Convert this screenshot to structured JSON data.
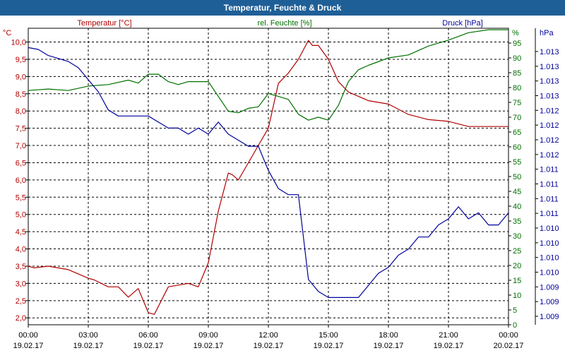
{
  "window": {
    "title": "Temperatur, Feuchte & Druck"
  },
  "chart_data": {
    "type": "line",
    "title": "Temperatur, Feuchte & Druck",
    "grid": true,
    "colors": {
      "temperature": "#b00000",
      "humidity": "#007000",
      "pressure": "#00009a",
      "titlebar": "#1f5f97"
    },
    "x_ticks": [
      {
        "time": "00:00",
        "date": "19.02.17"
      },
      {
        "time": "03:00",
        "date": "19.02.17"
      },
      {
        "time": "06:00",
        "date": "19.02.17"
      },
      {
        "time": "09:00",
        "date": "19.02.17"
      },
      {
        "time": "12:00",
        "date": "19.02.17"
      },
      {
        "time": "15:00",
        "date": "19.02.17"
      },
      {
        "time": "18:00",
        "date": "19.02.17"
      },
      {
        "time": "21:00",
        "date": "19.02.17"
      },
      {
        "time": "00:00",
        "date": "20.02.17"
      }
    ],
    "axes": {
      "temperature": {
        "label": "Temperatur [°C]",
        "unit": "°C",
        "range": [
          1.8,
          10.4
        ],
        "ticks": [
          "2,0",
          "2,5",
          "3,0",
          "3,5",
          "4,0",
          "4,5",
          "5,0",
          "5,5",
          "6,0",
          "6,5",
          "7,0",
          "7,5",
          "8,0",
          "8,5",
          "9,0",
          "9,5",
          "10,0"
        ]
      },
      "humidity": {
        "label": "rel. Feuchte [%]",
        "unit": "%",
        "range": [
          0,
          100
        ],
        "ticks": [
          "0",
          "5",
          "10",
          "15",
          "20",
          "25",
          "30",
          "35",
          "40",
          "45",
          "50",
          "55",
          "60",
          "65",
          "70",
          "75",
          "80",
          "85",
          "90",
          "95"
        ]
      },
      "pressure": {
        "label": "Druck [hPa]",
        "unit": "hPa",
        "ticks": [
          "1.009",
          "1.009",
          "1.009",
          "1.010",
          "1.010",
          "1.010",
          "1.010",
          "1.011",
          "1.011",
          "1.011",
          "1.011",
          "1.012",
          "1.012",
          "1.012",
          "1.012",
          "1.013",
          "1.013",
          "1.013",
          "1.013"
        ]
      }
    },
    "series": [
      {
        "key": "temperature",
        "x": [
          0,
          0.3,
          1,
          2,
          3,
          3.3,
          4,
          4.5,
          5,
          5.5,
          6,
          6.3,
          7,
          7.5,
          8,
          8.5,
          9,
          9.5,
          10,
          10.2,
          10.5,
          11,
          11.5,
          12,
          12.5,
          13,
          13.5,
          14,
          14.2,
          14.5,
          15,
          15.5,
          16,
          17,
          18,
          19,
          20,
          21,
          22,
          23,
          24
        ],
        "y": [
          3.5,
          3.45,
          3.5,
          3.4,
          3.15,
          3.1,
          2.9,
          2.9,
          2.6,
          2.85,
          2.15,
          2.1,
          2.9,
          2.95,
          3.0,
          2.9,
          3.6,
          5.1,
          6.2,
          6.15,
          6.0,
          6.5,
          7.0,
          7.5,
          8.8,
          9.1,
          9.5,
          10.05,
          9.9,
          9.9,
          9.5,
          8.85,
          8.55,
          8.3,
          8.2,
          7.9,
          7.75,
          7.7,
          7.55,
          7.55,
          7.55
        ]
      },
      {
        "key": "humidity",
        "x": [
          0,
          1,
          2,
          3,
          4,
          5,
          5.5,
          6,
          6.5,
          7,
          7.5,
          8,
          9,
          10,
          10.5,
          11,
          11.5,
          12,
          12.5,
          13,
          13.5,
          14,
          14.5,
          15,
          15.5,
          16,
          16.5,
          17,
          18,
          19,
          20,
          21,
          22,
          23,
          24
        ],
        "y": [
          79,
          79.5,
          79,
          80.5,
          81,
          82.5,
          81.5,
          84.5,
          84.5,
          82,
          81,
          82,
          82,
          72,
          71.5,
          73,
          73.5,
          78,
          77,
          76,
          71,
          69,
          70,
          69,
          74,
          82,
          86,
          87.5,
          90,
          91,
          94,
          96,
          98.5,
          99.5,
          99.5
        ]
      },
      {
        "key": "pressure",
        "x": [
          0,
          0.5,
          1,
          2,
          2.5,
          3,
          3.5,
          4,
          4.5,
          5,
          5.5,
          6,
          6.5,
          7,
          7.5,
          8,
          8.5,
          9,
          9.5,
          10,
          10.5,
          11,
          11.5,
          12,
          12.5,
          13,
          13.5,
          14,
          14.5,
          15,
          15.5,
          16,
          16.5,
          17,
          17.5,
          18,
          18.5,
          19,
          19.5,
          20,
          20.5,
          21,
          21.5,
          22,
          22.5,
          23,
          23.5,
          24
        ],
        "y": [
          1.01323,
          1.0132,
          1.0131,
          1.013,
          1.0129,
          1.0127,
          1.0125,
          1.0122,
          1.0121,
          1.0121,
          1.0121,
          1.0121,
          1.012,
          1.0119,
          1.0119,
          1.0118,
          1.0119,
          1.0118,
          1.012,
          1.0118,
          1.0117,
          1.0116,
          1.0116,
          1.0112,
          1.0109,
          1.0108,
          1.0108,
          1.0094,
          1.0092,
          1.0091,
          1.0091,
          1.0091,
          1.0091,
          1.0093,
          1.0095,
          1.0096,
          1.0098,
          1.0099,
          1.0101,
          1.0101,
          1.0103,
          1.0104,
          1.0106,
          1.0104,
          1.0105,
          1.0103,
          1.0103,
          1.0105
        ]
      }
    ]
  }
}
